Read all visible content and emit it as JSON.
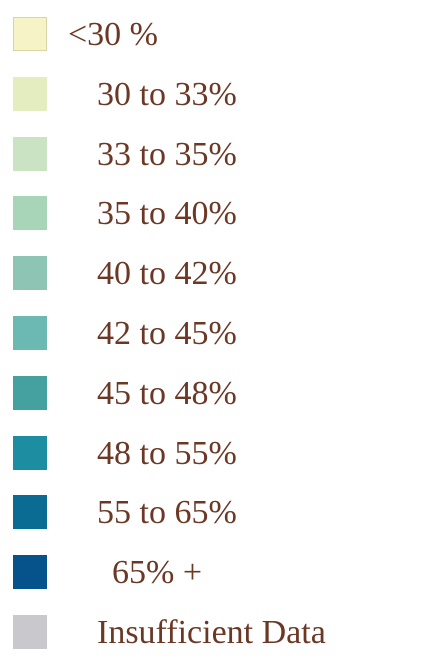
{
  "legend": {
    "items": [
      {
        "label": "<30 %",
        "color": "#f6f4c6"
      },
      {
        "label": "30 to 33%",
        "color": "#e3edbf"
      },
      {
        "label": "33 to 35%",
        "color": "#c9e3c3"
      },
      {
        "label": "35 to 40%",
        "color": "#a8d4b7"
      },
      {
        "label": "40 to 42%",
        "color": "#8dc4b3"
      },
      {
        "label": "42 to 45%",
        "color": "#6cb8b3"
      },
      {
        "label": "45 to 48%",
        "color": "#45a19f"
      },
      {
        "label": "48 to 55%",
        "color": "#1d8ea2"
      },
      {
        "label": "55 to 65%",
        "color": "#0b6c93"
      },
      {
        "label": "65% +",
        "color": "#06528b"
      },
      {
        "label": "Insufficient Data",
        "color": "#c9c9cd"
      }
    ]
  }
}
